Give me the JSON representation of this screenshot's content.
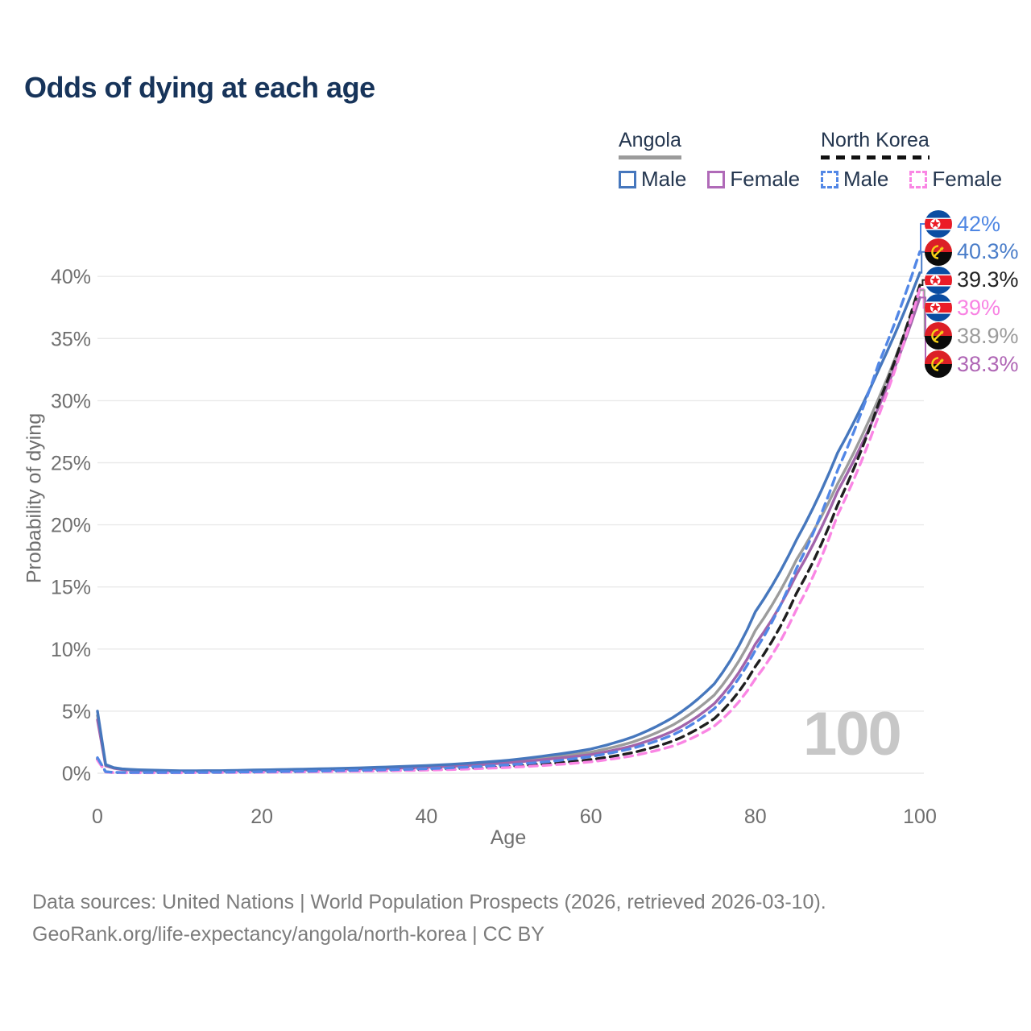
{
  "title": "Odds of dying at each age",
  "legend": {
    "groups": [
      {
        "label": "Angola",
        "dash": false,
        "rule_color": "#9b9b9b",
        "items": [
          {
            "label": "Male",
            "color": "#4677bd",
            "dash": false
          },
          {
            "label": "Female",
            "color": "#b06ab8",
            "dash": false
          }
        ]
      },
      {
        "label": "North Korea",
        "dash": true,
        "rule_color": "#111111",
        "items": [
          {
            "label": "Male",
            "color": "#5287e6",
            "dash": true
          },
          {
            "label": "Female",
            "color": "#fa86e4",
            "dash": true
          }
        ]
      }
    ]
  },
  "axes": {
    "y_title": "Probability of dying",
    "x_title": "Age"
  },
  "watermark": "100",
  "footer": {
    "line1": "Data sources: United Nations | World Population Prospects (2026, retrieved 2026-03-10).",
    "line2": "GeoRank.org/life-expectancy/angola/north-korea | CC BY"
  },
  "chart_data": {
    "type": "line",
    "title": "Odds of dying at each age",
    "xlabel": "Age",
    "ylabel": "Probability of dying",
    "xlim": [
      0,
      100
    ],
    "ylim": [
      0,
      44
    ],
    "xticks": [
      0,
      20,
      40,
      60,
      80,
      100
    ],
    "yticks": [
      0,
      5,
      10,
      15,
      20,
      25,
      30,
      35,
      40
    ],
    "grid": "horizontal",
    "legend_position": "top-right",
    "units": "percent",
    "series": [
      {
        "key": "angola_both",
        "name": "Angola (both sexes)",
        "country": "Angola",
        "sex": "both",
        "color": "#9c9c9c",
        "dash": false,
        "points": [
          [
            0,
            4.65
          ],
          [
            1,
            0.65
          ],
          [
            2,
            0.42
          ],
          [
            3,
            0.33
          ],
          [
            5,
            0.25
          ],
          [
            10,
            0.18
          ],
          [
            15,
            0.19
          ],
          [
            20,
            0.24
          ],
          [
            25,
            0.29
          ],
          [
            30,
            0.36
          ],
          [
            35,
            0.44
          ],
          [
            40,
            0.55
          ],
          [
            45,
            0.72
          ],
          [
            50,
            0.95
          ],
          [
            55,
            1.3
          ],
          [
            60,
            1.7
          ],
          [
            65,
            2.5
          ],
          [
            70,
            3.9
          ],
          [
            75,
            6.3
          ],
          [
            80,
            11.5
          ],
          [
            85,
            17.2
          ],
          [
            90,
            23.3
          ],
          [
            95,
            30.2
          ],
          [
            100,
            38.9
          ]
        ]
      },
      {
        "key": "angola_female",
        "name": "Angola Female",
        "country": "Angola",
        "sex": "female",
        "color": "#a264ab",
        "dash": false,
        "points": [
          [
            0,
            4.3
          ],
          [
            1,
            0.6
          ],
          [
            2,
            0.4
          ],
          [
            3,
            0.3
          ],
          [
            5,
            0.22
          ],
          [
            10,
            0.16
          ],
          [
            15,
            0.17
          ],
          [
            20,
            0.21
          ],
          [
            25,
            0.26
          ],
          [
            30,
            0.32
          ],
          [
            35,
            0.39
          ],
          [
            40,
            0.48
          ],
          [
            45,
            0.62
          ],
          [
            50,
            0.85
          ],
          [
            55,
            1.15
          ],
          [
            60,
            1.5
          ],
          [
            65,
            2.2
          ],
          [
            70,
            3.4
          ],
          [
            75,
            5.6
          ],
          [
            80,
            10.4
          ],
          [
            85,
            16.0
          ],
          [
            90,
            22.7
          ],
          [
            95,
            29.5
          ],
          [
            100,
            38.3
          ]
        ]
      },
      {
        "key": "angola_male",
        "name": "Angola Male",
        "country": "Angola",
        "sex": "male",
        "color": "#4677bd",
        "dash": false,
        "points": [
          [
            0,
            5.0
          ],
          [
            1,
            0.7
          ],
          [
            2,
            0.45
          ],
          [
            3,
            0.35
          ],
          [
            5,
            0.28
          ],
          [
            10,
            0.2
          ],
          [
            15,
            0.21
          ],
          [
            20,
            0.27
          ],
          [
            25,
            0.33
          ],
          [
            30,
            0.4
          ],
          [
            35,
            0.5
          ],
          [
            40,
            0.62
          ],
          [
            45,
            0.8
          ],
          [
            50,
            1.05
          ],
          [
            55,
            1.45
          ],
          [
            60,
            1.95
          ],
          [
            65,
            2.9
          ],
          [
            70,
            4.5
          ],
          [
            75,
            7.2
          ],
          [
            80,
            13.0
          ],
          [
            85,
            18.8
          ],
          [
            90,
            25.8
          ],
          [
            95,
            32.5
          ],
          [
            100,
            40.3
          ]
        ]
      },
      {
        "key": "nk_both",
        "name": "North Korea (both sexes)",
        "country": "North Korea",
        "sex": "both",
        "color": "#1f1f1f",
        "dash": true,
        "points": [
          [
            0,
            1.15
          ],
          [
            1,
            0.11
          ],
          [
            2,
            0.06
          ],
          [
            3,
            0.05
          ],
          [
            5,
            0.05
          ],
          [
            10,
            0.05
          ],
          [
            15,
            0.07
          ],
          [
            20,
            0.1
          ],
          [
            25,
            0.13
          ],
          [
            30,
            0.18
          ],
          [
            35,
            0.23
          ],
          [
            40,
            0.3
          ],
          [
            45,
            0.4
          ],
          [
            50,
            0.55
          ],
          [
            55,
            0.78
          ],
          [
            60,
            1.1
          ],
          [
            65,
            1.65
          ],
          [
            70,
            2.6
          ],
          [
            75,
            4.4
          ],
          [
            80,
            8.6
          ],
          [
            85,
            14.5
          ],
          [
            90,
            21.6
          ],
          [
            95,
            29.8
          ],
          [
            100,
            39.3
          ]
        ]
      },
      {
        "key": "nk_female",
        "name": "North Korea Female",
        "country": "North Korea",
        "sex": "female",
        "color": "#fa86e4",
        "dash": true,
        "points": [
          [
            0,
            1.05
          ],
          [
            1,
            0.1
          ],
          [
            2,
            0.05
          ],
          [
            3,
            0.04
          ],
          [
            5,
            0.04
          ],
          [
            10,
            0.04
          ],
          [
            15,
            0.06
          ],
          [
            20,
            0.08
          ],
          [
            25,
            0.11
          ],
          [
            30,
            0.15
          ],
          [
            35,
            0.19
          ],
          [
            40,
            0.25
          ],
          [
            45,
            0.34
          ],
          [
            50,
            0.47
          ],
          [
            55,
            0.66
          ],
          [
            60,
            0.92
          ],
          [
            65,
            1.4
          ],
          [
            70,
            2.2
          ],
          [
            75,
            3.8
          ],
          [
            80,
            7.6
          ],
          [
            85,
            13.2
          ],
          [
            90,
            20.8
          ],
          [
            95,
            28.8
          ],
          [
            100,
            39.0
          ]
        ]
      },
      {
        "key": "nk_male",
        "name": "North Korea Male",
        "country": "North Korea",
        "sex": "male",
        "color": "#5287e6",
        "dash": true,
        "points": [
          [
            0,
            1.25
          ],
          [
            1,
            0.12
          ],
          [
            2,
            0.07
          ],
          [
            3,
            0.06
          ],
          [
            5,
            0.06
          ],
          [
            10,
            0.06
          ],
          [
            15,
            0.08
          ],
          [
            20,
            0.12
          ],
          [
            25,
            0.16
          ],
          [
            30,
            0.22
          ],
          [
            35,
            0.28
          ],
          [
            40,
            0.36
          ],
          [
            45,
            0.5
          ],
          [
            50,
            0.68
          ],
          [
            55,
            0.95
          ],
          [
            60,
            1.35
          ],
          [
            65,
            2.0
          ],
          [
            70,
            3.1
          ],
          [
            75,
            5.2
          ],
          [
            80,
            9.9
          ],
          [
            85,
            16.5
          ],
          [
            90,
            24.4
          ],
          [
            95,
            33.0
          ],
          [
            100,
            42.0
          ]
        ]
      }
    ],
    "end_labels": [
      {
        "series": "nk_male",
        "text": "42%",
        "flag": "north-korea",
        "color": "#4e86e3"
      },
      {
        "series": "angola_male",
        "text": "40.3%",
        "flag": "angola",
        "color": "#4a7dc9"
      },
      {
        "series": "nk_both",
        "text": "39.3%",
        "flag": "north-korea",
        "color": "#222222"
      },
      {
        "series": "nk_female",
        "text": "39%",
        "flag": "north-korea",
        "color": "#f883e3"
      },
      {
        "series": "angola_both",
        "text": "38.9%",
        "flag": "angola",
        "color": "#9c9c9c"
      },
      {
        "series": "angola_female",
        "text": "38.3%",
        "flag": "angola",
        "color": "#af66b5"
      }
    ]
  }
}
